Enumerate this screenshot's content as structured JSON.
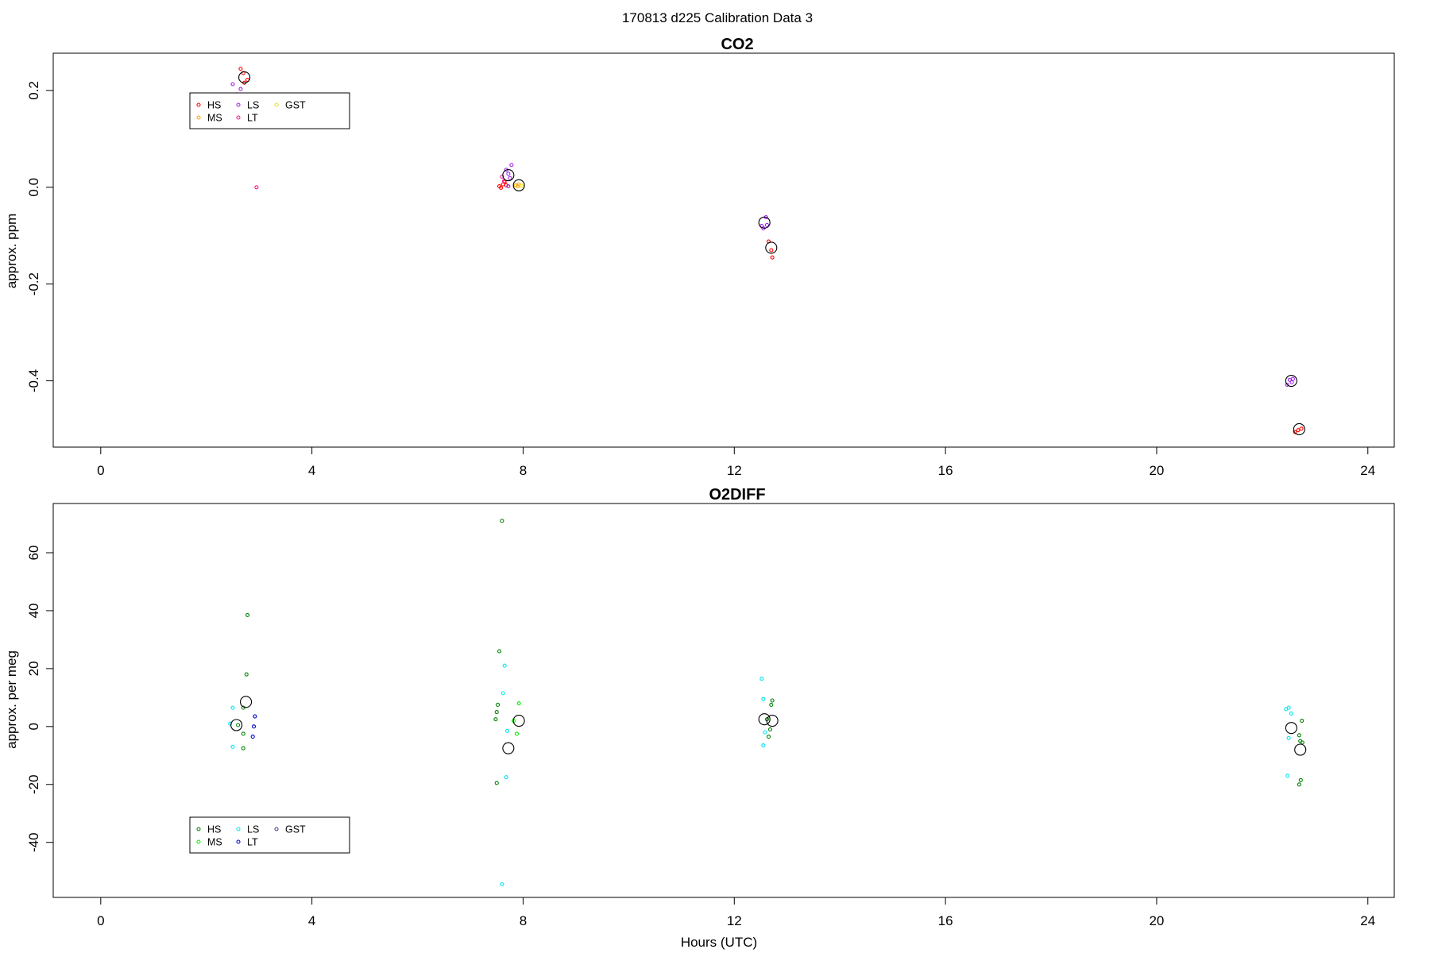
{
  "figure": {
    "suptitle": "170813   d225   Calibration Data 3",
    "xlabel": "Hours (UTC)"
  },
  "chart_data": [
    {
      "type": "scatter",
      "title": "CO2",
      "xlabel": "",
      "ylabel": "approx. ppm",
      "xlim": [
        -0.9,
        24.5
      ],
      "ylim": [
        -0.537,
        0.277
      ],
      "xticks": [
        0,
        4,
        8,
        12,
        16,
        20,
        24
      ],
      "yticks": [
        -0.4,
        -0.2,
        0.0,
        0.2
      ],
      "ytick_labels": [
        "-0.4",
        "-0.2",
        "0.0",
        "0.2"
      ],
      "legend": {
        "position": "top-left",
        "entries": [
          "HS",
          "MS",
          "LS",
          "LT",
          "GST"
        ]
      },
      "series": [
        {
          "name": "HS",
          "color": "#ff0000",
          "points": [
            [
              2.65,
              0.245
            ],
            [
              2.7,
              0.236
            ],
            [
              2.78,
              0.222
            ],
            [
              2.72,
              0.216
            ],
            [
              7.55,
              0.002
            ],
            [
              7.58,
              -0.001
            ],
            [
              7.62,
              0.006
            ],
            [
              7.65,
              0.011
            ],
            [
              7.68,
              0.004
            ],
            [
              12.65,
              -0.112
            ],
            [
              12.7,
              -0.13
            ],
            [
              12.72,
              -0.145
            ],
            [
              22.62,
              -0.506
            ],
            [
              22.68,
              -0.502
            ],
            [
              22.74,
              -0.499
            ]
          ]
        },
        {
          "name": "MS",
          "color": "#ffa500",
          "points": [
            [
              7.86,
              0.004
            ],
            [
              7.9,
              0.002
            ],
            [
              7.92,
              0.006
            ]
          ]
        },
        {
          "name": "LS",
          "color": "#a020f0",
          "points": [
            [
              2.5,
              0.213
            ],
            [
              2.58,
              0.192
            ],
            [
              2.65,
              0.203
            ],
            [
              7.68,
              0.036
            ],
            [
              7.72,
              0.028
            ],
            [
              7.75,
              0.019
            ],
            [
              7.78,
              0.046
            ],
            [
              7.72,
              0.002
            ],
            [
              12.52,
              -0.08
            ],
            [
              12.55,
              -0.085
            ],
            [
              12.6,
              -0.062
            ],
            [
              12.62,
              -0.078
            ],
            [
              22.47,
              -0.408
            ],
            [
              22.52,
              -0.398
            ],
            [
              22.56,
              -0.403
            ],
            [
              22.58,
              -0.396
            ]
          ]
        },
        {
          "name": "LT",
          "color": "#ff1493",
          "points": [
            [
              2.95,
              0.0
            ],
            [
              7.6,
              0.022
            ],
            [
              7.64,
              0.013
            ]
          ]
        },
        {
          "name": "GST",
          "color": "#ffe000",
          "points": [
            [
              7.97,
              0.003
            ]
          ]
        },
        {
          "name": "",
          "role": "mean",
          "color": "#000000",
          "points": [
            [
              2.72,
              0.227
            ],
            [
              7.72,
              0.025
            ],
            [
              7.92,
              0.004
            ],
            [
              12.57,
              -0.073
            ],
            [
              12.7,
              -0.125
            ],
            [
              22.55,
              -0.4
            ],
            [
              22.7,
              -0.5
            ]
          ]
        }
      ]
    },
    {
      "type": "scatter",
      "title": "O2DIFF",
      "xlabel": "Hours (UTC)",
      "ylabel": "approx. per meg",
      "xlim": [
        -0.9,
        24.5
      ],
      "ylim": [
        -59,
        77
      ],
      "xticks": [
        0,
        4,
        8,
        12,
        16,
        20,
        24
      ],
      "yticks": [
        -40,
        -20,
        0,
        20,
        40,
        60
      ],
      "ytick_labels": [
        "-40",
        "-20",
        "0",
        "20",
        "40",
        "60"
      ],
      "legend": {
        "position": "bottom-left",
        "entries": [
          "HS",
          "MS",
          "LS",
          "LT",
          "GST"
        ]
      },
      "series": [
        {
          "name": "HS",
          "color": "#008000",
          "points": [
            [
              2.78,
              38.5
            ],
            [
              2.76,
              18.0
            ],
            [
              2.7,
              6.5
            ],
            [
              2.7,
              -2.5
            ],
            [
              2.7,
              -7.5
            ],
            [
              2.6,
              0.5
            ],
            [
              7.55,
              26.0
            ],
            [
              7.52,
              7.5
            ],
            [
              7.5,
              5.0
            ],
            [
              7.48,
              2.5
            ],
            [
              7.5,
              -19.5
            ],
            [
              7.6,
              71.0
            ],
            [
              12.72,
              9.0
            ],
            [
              12.7,
              7.5
            ],
            [
              12.68,
              -1.0
            ],
            [
              12.65,
              -3.5
            ],
            [
              12.62,
              2.5
            ],
            [
              22.75,
              2.0
            ],
            [
              22.7,
              -3.0
            ],
            [
              22.72,
              -5.0
            ],
            [
              22.76,
              -5.5
            ],
            [
              22.73,
              -18.5
            ],
            [
              22.7,
              -20.0
            ]
          ]
        },
        {
          "name": "MS",
          "color": "#00ee00",
          "points": [
            [
              7.92,
              8.0
            ],
            [
              7.88,
              -2.5
            ],
            [
              7.82,
              2.0
            ]
          ]
        },
        {
          "name": "LS",
          "color": "#00e5ee",
          "points": [
            [
              2.5,
              6.5
            ],
            [
              2.5,
              -7.0
            ],
            [
              2.45,
              1.0
            ],
            [
              7.65,
              21.0
            ],
            [
              7.62,
              11.5
            ],
            [
              7.68,
              -17.5
            ],
            [
              7.6,
              -54.5
            ],
            [
              7.7,
              -1.5
            ],
            [
              12.52,
              16.5
            ],
            [
              12.55,
              9.5
            ],
            [
              12.58,
              -2.0
            ],
            [
              12.55,
              -6.5
            ],
            [
              22.45,
              6.0
            ],
            [
              22.5,
              6.5
            ],
            [
              22.55,
              4.5
            ],
            [
              22.5,
              -4.0
            ],
            [
              22.48,
              -17.0
            ]
          ]
        },
        {
          "name": "LT",
          "color": "#0000cd",
          "points": [
            [
              2.92,
              3.5
            ],
            [
              2.9,
              0.0
            ],
            [
              2.88,
              -3.5
            ]
          ]
        },
        {
          "name": "GST",
          "color": "#483d8b",
          "points": []
        },
        {
          "name": "",
          "role": "mean",
          "color": "#000000",
          "points": [
            [
              2.75,
              8.5
            ],
            [
              2.57,
              0.5
            ],
            [
              7.72,
              -7.5
            ],
            [
              7.92,
              2.0
            ],
            [
              12.57,
              2.5
            ],
            [
              12.72,
              2.0
            ],
            [
              22.55,
              -0.5
            ],
            [
              22.72,
              -8.0
            ]
          ]
        }
      ]
    }
  ]
}
